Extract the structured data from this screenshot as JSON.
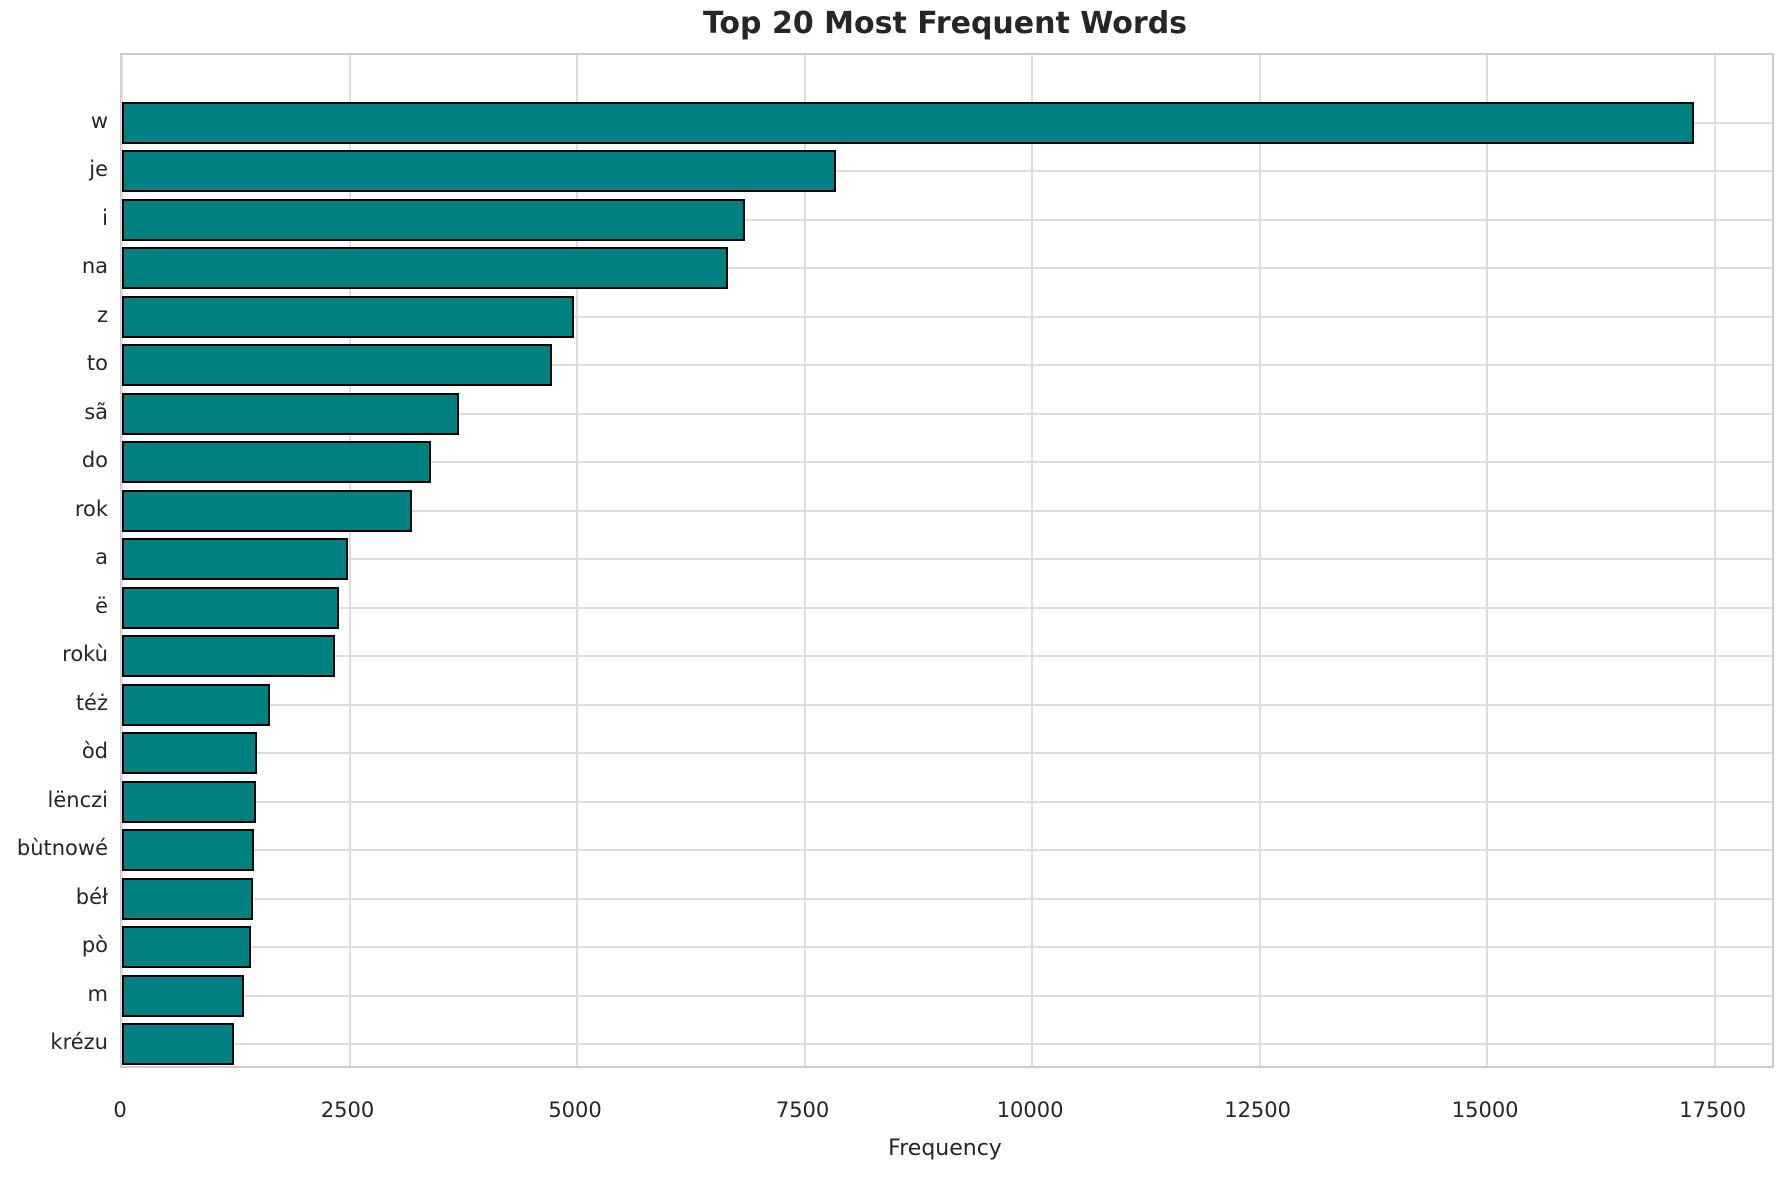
{
  "chart_data": {
    "type": "bar",
    "orientation": "horizontal",
    "title": "Top 20 Most Frequent Words",
    "xlabel": "Frequency",
    "ylabel": "",
    "categories": [
      "w",
      "je",
      "i",
      "na",
      "z",
      "to",
      "sã",
      "do",
      "rok",
      "a",
      "ë",
      "rokù",
      "téż",
      "òd",
      "lënczi",
      "bùtnowé",
      "béł",
      "pò",
      "m",
      "krézu"
    ],
    "values": [
      17270,
      7850,
      6840,
      6660,
      4970,
      4730,
      3700,
      3390,
      3190,
      2480,
      2380,
      2340,
      1630,
      1480,
      1470,
      1450,
      1440,
      1420,
      1340,
      1230
    ],
    "xticks": [
      0,
      2500,
      5000,
      7500,
      10000,
      12500,
      15000,
      17500
    ],
    "xtick_labels": [
      "0",
      "2500",
      "5000",
      "7500",
      "10000",
      "12500",
      "15000",
      "17500"
    ],
    "xlim": [
      0,
      18130
    ],
    "grid": true,
    "legend": null,
    "colors": {
      "bar_fill": "#008080",
      "bar_edge": "#000000",
      "grid": "#dcdcdc",
      "spine": "#cccccc",
      "text": "#262626",
      "background": "#ffffff"
    }
  }
}
